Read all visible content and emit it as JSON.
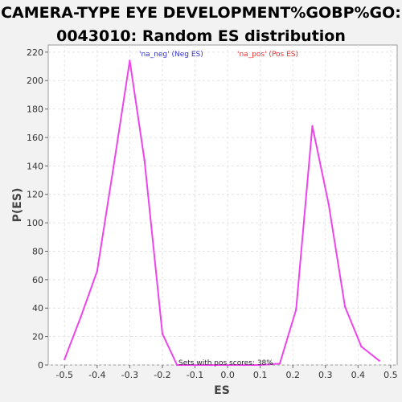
{
  "chart_data": {
    "type": "line",
    "title_lines": [
      "CAMERA-TYPE EYE DEVELOPMENT%GOBP%GO:",
      "0043010: Random ES distribution"
    ],
    "xlabel": "ES",
    "ylabel": "P(ES)",
    "xlim": [
      -0.55,
      0.52
    ],
    "ylim": [
      0,
      225
    ],
    "x_ticks": [
      "-0.5",
      "-0.4",
      "-0.3",
      "-0.2",
      "-0.1",
      "0.0",
      "0.1",
      "0.2",
      "0.3",
      "0.4",
      "0.5"
    ],
    "x_tick_values": [
      -0.5,
      -0.4,
      -0.3,
      -0.2,
      -0.1,
      0.0,
      0.1,
      0.2,
      0.3,
      0.4,
      0.5
    ],
    "y_ticks": [
      "0",
      "20",
      "40",
      "60",
      "80",
      "100",
      "120",
      "140",
      "160",
      "180",
      "200",
      "220"
    ],
    "y_tick_values": [
      0,
      20,
      40,
      60,
      80,
      100,
      120,
      140,
      160,
      180,
      200,
      220
    ],
    "grid": true,
    "legend": [
      {
        "label": "'na_neg' (Neg ES)",
        "color": "#3333cc"
      },
      {
        "label": "'na_pos' (Pos ES)",
        "color": "#e83030"
      }
    ],
    "annotation": "Sets with pos scores: 38%",
    "series": [
      {
        "color": "#ee44ee",
        "x": [
          -0.5,
          -0.45,
          -0.4,
          -0.35,
          -0.3,
          -0.255,
          -0.2,
          -0.155,
          -0.1,
          -0.05,
          0.0,
          0.05,
          0.1,
          0.16,
          0.21,
          0.26,
          0.31,
          0.36,
          0.41,
          0.465
        ],
        "y": [
          4,
          34,
          66,
          139,
          214,
          144,
          22,
          0,
          0,
          0,
          0,
          0,
          0,
          1,
          39,
          168,
          113,
          41,
          13,
          3
        ]
      }
    ]
  }
}
